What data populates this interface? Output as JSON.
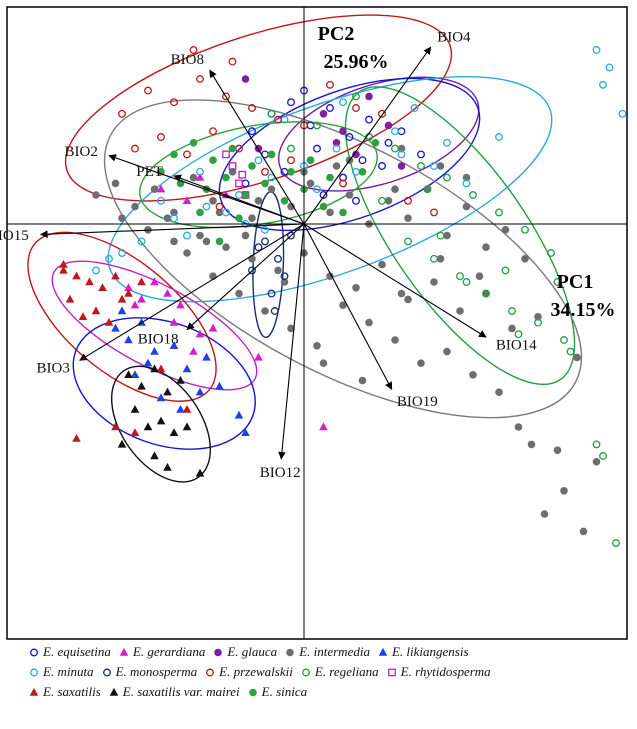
{
  "chart_data": {
    "type": "scatter",
    "xlabel": "PC1",
    "xpct": "34.15%",
    "ylabel": "PC2",
    "ypct": "25.96%",
    "xlim": [
      -4.5,
      5.0
    ],
    "ylim": [
      -6.0,
      3.5
    ],
    "grid": false,
    "legend_position": "bottom",
    "vectors": [
      {
        "name": "BIO8",
        "x": -1.45,
        "y": 2.65
      },
      {
        "name": "BIO4",
        "x": 1.95,
        "y": 3.05
      },
      {
        "name": "BIO2",
        "x": -3.0,
        "y": 1.18
      },
      {
        "name": "PET",
        "x": -2.0,
        "y": 0.83
      },
      {
        "name": "BIO15",
        "x": -4.05,
        "y": -0.18
      },
      {
        "name": "BIO3",
        "x": -3.45,
        "y": -2.35
      },
      {
        "name": "BIO18",
        "x": -1.8,
        "y": -1.82
      },
      {
        "name": "BIO14",
        "x": 2.8,
        "y": -1.95
      },
      {
        "name": "BIO19",
        "x": 1.35,
        "y": -2.85
      },
      {
        "name": "BIO12",
        "x": -0.35,
        "y": -4.05
      }
    ],
    "series": [
      {
        "name": "E. equisetina",
        "marker": "circle-open",
        "color": "#1515d0",
        "x": [
          -0.8,
          -0.5,
          -0.2,
          0.1,
          0.4,
          0.7,
          1.0,
          1.3,
          -0.6,
          0.2,
          0.9,
          1.5,
          -0.3,
          0.6,
          1.2,
          0.0,
          -0.9,
          1.8,
          0.3,
          0.8
        ],
        "y": [
          1.6,
          1.9,
          2.1,
          1.7,
          2.0,
          1.5,
          1.8,
          1.4,
          1.2,
          1.3,
          1.1,
          1.6,
          0.9,
          0.8,
          1.0,
          2.3,
          0.7,
          1.2,
          0.5,
          0.4
        ]
      },
      {
        "name": "E. gerardiana",
        "marker": "triangle",
        "color": "#d020d0",
        "x": [
          -2.3,
          -2.1,
          -1.9,
          -2.5,
          -1.6,
          -2.0,
          -1.4,
          -1.7,
          -2.6,
          -0.7,
          0.3,
          -1.6,
          -2.2,
          -1.2,
          -1.8,
          -2.7
        ],
        "y": [
          -1.0,
          -1.2,
          -1.4,
          -1.3,
          -1.9,
          -1.7,
          -1.8,
          -2.2,
          -1.4,
          -2.3,
          -3.5,
          0.8,
          0.6,
          0.5,
          0.4,
          -1.1
        ]
      },
      {
        "name": "E. glauca",
        "marker": "circle",
        "color": "#8020a0",
        "x": [
          0.3,
          0.6,
          1.0,
          1.3,
          0.8,
          1.5,
          -0.7,
          -0.9,
          0.1,
          0.5
        ],
        "y": [
          1.9,
          1.6,
          2.2,
          1.7,
          1.2,
          1.0,
          1.3,
          2.5,
          1.1,
          1.4
        ]
      },
      {
        "name": "E. intermedia",
        "marker": "circle",
        "color": "#6e6e6e",
        "x": [
          -3.2,
          -2.9,
          -2.6,
          -2.3,
          -2.0,
          -1.7,
          -1.4,
          -1.1,
          -0.8,
          -0.5,
          -0.2,
          0.1,
          0.4,
          0.7,
          1.0,
          1.3,
          1.6,
          1.9,
          2.2,
          2.5,
          2.8,
          3.1,
          3.4,
          -2.8,
          -2.4,
          -2.0,
          -1.6,
          -1.2,
          -0.8,
          -0.4,
          0.0,
          0.4,
          0.8,
          1.2,
          1.6,
          2.0,
          2.4,
          2.8,
          3.2,
          3.6,
          -1.8,
          -1.4,
          -1.0,
          -0.6,
          -0.2,
          0.2,
          0.6,
          1.0,
          1.4,
          1.8,
          2.2,
          2.6,
          3.0,
          -0.9,
          -0.3,
          0.3,
          0.9,
          1.5,
          2.1,
          2.7,
          3.3,
          3.9,
          4.2,
          -0.5,
          0.5,
          1.5,
          2.5,
          3.5,
          4.5,
          4.0,
          3.7,
          4.3,
          -1.3,
          -0.7,
          0.0,
          0.7,
          1.4,
          2.1,
          -2.1,
          -1.5
        ],
        "y": [
          0.5,
          0.7,
          0.3,
          0.6,
          0.2,
          0.8,
          0.4,
          0.9,
          0.1,
          0.6,
          0.3,
          0.7,
          0.2,
          0.5,
          0.0,
          0.4,
          0.1,
          0.6,
          -0.2,
          0.3,
          -0.4,
          -0.1,
          -0.6,
          0.1,
          -0.1,
          -0.3,
          -0.2,
          -0.4,
          -0.6,
          -0.8,
          -0.5,
          -0.9,
          -1.1,
          -0.7,
          -1.3,
          -1.0,
          -1.5,
          -1.2,
          -1.8,
          -1.6,
          -0.5,
          -0.9,
          -1.2,
          -1.5,
          -1.8,
          -2.1,
          -1.4,
          -1.7,
          -2.0,
          -2.4,
          -2.2,
          -2.6,
          -2.9,
          -0.2,
          -1.0,
          -2.4,
          -2.7,
          -1.2,
          -0.6,
          -0.9,
          -3.5,
          -3.9,
          -2.3,
          1.2,
          1.0,
          1.3,
          0.8,
          -3.8,
          -4.1,
          -4.6,
          -5.0,
          -5.3,
          0.2,
          0.4,
          0.9,
          1.1,
          0.6,
          1.0,
          0.1,
          -0.3
        ]
      },
      {
        "name": "E. likiangensis",
        "marker": "triangle",
        "color": "#2040e0",
        "x": [
          -2.9,
          -2.7,
          -2.5,
          -2.3,
          -2.0,
          -1.8,
          -1.5,
          -1.3,
          -2.6,
          -2.2,
          -1.9,
          -1.0,
          -0.9,
          -2.8,
          -1.6,
          -2.4
        ],
        "y": [
          -1.8,
          -2.0,
          -1.7,
          -2.2,
          -2.1,
          -2.5,
          -2.3,
          -2.8,
          -2.6,
          -3.0,
          -3.2,
          -3.3,
          -3.6,
          -1.5,
          -2.9,
          -2.4
        ]
      },
      {
        "name": "E. minuta",
        "marker": "circle-open",
        "color": "#2aaae0",
        "x": [
          -3.0,
          -2.5,
          -2.0,
          -1.5,
          -1.0,
          -0.5,
          0.0,
          0.5,
          1.0,
          1.5,
          2.0,
          2.5,
          -1.8,
          -1.2,
          -0.6,
          0.2,
          0.8,
          1.4,
          -2.2,
          -0.9,
          4.5,
          4.7,
          4.6,
          4.9,
          -0.3,
          0.6,
          1.7,
          -1.6,
          2.2,
          -2.8,
          -3.2,
          -0.7,
          3.0
        ],
        "y": [
          -0.6,
          -0.3,
          0.1,
          0.3,
          0.5,
          0.8,
          1.0,
          1.3,
          1.5,
          1.2,
          1.0,
          0.7,
          -0.2,
          0.2,
          -0.1,
          0.6,
          0.9,
          1.6,
          0.4,
          0.0,
          3.0,
          2.7,
          2.4,
          1.9,
          1.8,
          2.1,
          2.0,
          0.9,
          1.4,
          -0.5,
          -0.8,
          1.1,
          1.5
        ]
      },
      {
        "name": "E. monosperma",
        "marker": "circle-open",
        "color": "#1a2a7a",
        "x": [
          -0.6,
          -0.4,
          -0.3,
          -0.5,
          -0.7,
          -0.2,
          -0.8,
          -0.45
        ],
        "y": [
          -0.3,
          -0.6,
          -0.9,
          -1.2,
          -0.4,
          -0.2,
          -0.8,
          -1.5
        ]
      },
      {
        "name": "E. przewalskii",
        "marker": "circle-open",
        "color": "#c01818",
        "x": [
          -2.8,
          -2.4,
          -2.0,
          -1.6,
          -1.2,
          -0.8,
          -0.4,
          0.0,
          0.4,
          0.8,
          1.2,
          -2.2,
          -1.8,
          -1.4,
          -1.0,
          -0.6,
          -0.2,
          0.6,
          1.6,
          2.0,
          -1.7,
          -1.1,
          -2.6,
          -0.9,
          -1.3
        ],
        "y": [
          1.9,
          2.3,
          2.1,
          2.5,
          2.2,
          2.0,
          1.8,
          1.7,
          2.4,
          2.0,
          1.9,
          1.5,
          1.2,
          1.6,
          1.3,
          0.9,
          1.1,
          0.7,
          0.4,
          0.2,
          3.0,
          2.8,
          1.3,
          0.5,
          0.3
        ]
      },
      {
        "name": "E. regeliana",
        "marker": "circle-open",
        "color": "#20a040",
        "x": [
          1.0,
          1.4,
          1.8,
          2.2,
          2.6,
          3.0,
          3.4,
          3.8,
          1.6,
          2.0,
          2.4,
          2.8,
          3.2,
          3.6,
          4.0,
          1.2,
          2.1,
          3.1,
          3.9,
          4.5,
          4.6,
          4.8,
          -0.5,
          0.2,
          0.8,
          2.5,
          3.3,
          4.1,
          -0.2,
          1.9
        ],
        "y": [
          1.5,
          1.3,
          1.0,
          0.8,
          0.5,
          0.2,
          -0.1,
          -0.5,
          -0.3,
          -0.6,
          -0.9,
          -1.2,
          -1.5,
          -1.7,
          -2.0,
          0.4,
          -0.2,
          -0.8,
          -1.0,
          -3.8,
          -4.0,
          -5.5,
          1.9,
          1.7,
          2.2,
          -1.0,
          -1.9,
          -2.2,
          1.3,
          0.6
        ]
      },
      {
        "name": "E. rhytidosperma",
        "marker": "square-open",
        "color": "#c020c0",
        "x": [
          -1.1,
          -1.0,
          -0.9,
          -1.2,
          -0.95
        ],
        "y": [
          1.0,
          0.7,
          0.5,
          1.2,
          0.85
        ]
      },
      {
        "name": "E. saxatilis",
        "marker": "triangle",
        "color": "#c01818",
        "x": [
          -3.7,
          -3.5,
          -3.3,
          -3.1,
          -2.9,
          -2.7,
          -2.5,
          -3.6,
          -3.2,
          -2.8,
          -3.4,
          -3.0,
          -2.2,
          -1.8,
          -3.5,
          -2.9,
          -2.6,
          -3.7
        ],
        "y": [
          -0.7,
          -0.9,
          -1.0,
          -1.1,
          -0.9,
          -1.2,
          -1.0,
          -1.3,
          -1.5,
          -1.3,
          -1.6,
          -1.7,
          -2.5,
          -3.2,
          -3.7,
          -3.5,
          -3.6,
          -0.8
        ]
      },
      {
        "name": "E. saxatilis var. mairei",
        "marker": "triangle",
        "color": "#111111",
        "x": [
          -2.7,
          -2.5,
          -2.3,
          -2.1,
          -1.9,
          -2.6,
          -2.4,
          -2.2,
          -2.0,
          -1.8,
          -2.8,
          -2.3,
          -2.1,
          -1.6
        ],
        "y": [
          -2.6,
          -2.8,
          -2.5,
          -2.9,
          -2.7,
          -3.2,
          -3.5,
          -3.4,
          -3.6,
          -3.5,
          -3.8,
          -4.0,
          -4.2,
          -4.3
        ]
      },
      {
        "name": "E. sinica",
        "marker": "circle",
        "color": "#30a040",
        "x": [
          -2.0,
          -1.7,
          -1.4,
          -1.1,
          -0.8,
          -0.5,
          -0.2,
          0.1,
          0.4,
          -1.9,
          -1.5,
          -1.2,
          -0.9,
          -0.6,
          -0.3,
          0.0,
          0.3,
          0.6,
          -1.6,
          -1.0,
          1.1,
          0.9,
          -2.2,
          -1.3
        ],
        "y": [
          1.2,
          1.4,
          1.1,
          1.3,
          1.0,
          1.2,
          0.9,
          1.1,
          0.8,
          0.7,
          0.6,
          0.8,
          0.5,
          0.7,
          0.4,
          0.6,
          0.3,
          0.2,
          0.2,
          0.1,
          1.4,
          0.9,
          0.9,
          -0.3
        ]
      }
    ],
    "ellipses": [
      {
        "series": "E. przewalskii",
        "color": "#c01818",
        "cx": -0.7,
        "cy": 2.0,
        "rx": 3.1,
        "ry": 1.25,
        "angle": 18
      },
      {
        "series": "E. glauca",
        "color": "#7020a0",
        "cx": 1.15,
        "cy": 1.55,
        "rx": 1.6,
        "ry": 0.85,
        "angle": 18
      },
      {
        "series": "E. equisetina",
        "color": "#1515d0",
        "cx": 0.7,
        "cy": 1.2,
        "rx": 2.1,
        "ry": 1.1,
        "angle": 20
      },
      {
        "series": "E. minuta",
        "color": "#2aaae0",
        "cx": 0.4,
        "cy": 0.6,
        "rx": 3.6,
        "ry": 1.45,
        "angle": 20
      },
      {
        "series": "E. sinica",
        "color": "#30a040",
        "cx": -0.7,
        "cy": 0.85,
        "rx": 1.85,
        "ry": 0.85,
        "angle": 10
      },
      {
        "series": "E. regeliana",
        "color": "#20a040",
        "cx": 2.4,
        "cy": -0.2,
        "rx": 2.7,
        "ry": 1.15,
        "angle": -55
      },
      {
        "series": "E. intermedia",
        "color": "#7a7a7a",
        "cx": 0.6,
        "cy": -0.6,
        "rx": 4.05,
        "ry": 1.95,
        "angle": -28
      },
      {
        "series": "E. monosperma",
        "color": "#1a2a7a",
        "cx": -0.55,
        "cy": -0.7,
        "rx": 1.12,
        "ry": 0.26,
        "angle": 88
      },
      {
        "series": "E. saxatilis",
        "color": "#c01818",
        "cx": -2.8,
        "cy": -1.6,
        "rx": 1.75,
        "ry": 0.95,
        "angle": -40
      },
      {
        "series": "E. gerardiana",
        "color": "#c020c0",
        "cx": -2.3,
        "cy": -1.75,
        "rx": 1.75,
        "ry": 0.7,
        "angle": -28
      },
      {
        "series": "E. likiangensis",
        "color": "#1515d0",
        "cx": -2.15,
        "cy": -2.75,
        "rx": 1.45,
        "ry": 1.05,
        "angle": -20
      },
      {
        "series": "E. saxatilis var. mairei",
        "color": "#111111",
        "cx": -2.2,
        "cy": -3.45,
        "rx": 1.0,
        "ry": 0.68,
        "angle": -55
      }
    ]
  },
  "legend": {
    "rows": [
      [
        "E. equisetina",
        "E. gerardiana",
        "E. glauca",
        "E. intermedia",
        "E. likiangensis"
      ],
      [
        "E. minuta",
        "E. monosperma",
        "E. przewalskii",
        "E. regeliana",
        "E. rhytidosperma"
      ],
      [
        "E. saxatilis",
        "E. saxatilis var. mairei",
        "E. sinica"
      ]
    ]
  }
}
